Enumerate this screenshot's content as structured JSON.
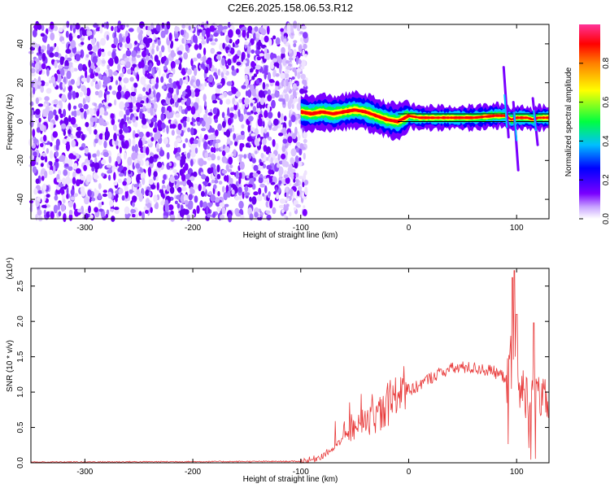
{
  "title": "C2E6.2025.158.06.53.R12",
  "chart_data": [
    {
      "type": "heatmap",
      "xlabel": "Height of straight line (km)",
      "ylabel": "Frequency (Hz)",
      "xlim": [
        -350,
        130
      ],
      "ylim": [
        -50,
        50
      ],
      "xticks": [
        -300,
        -200,
        -100,
        0,
        100
      ],
      "yticks": [
        -40,
        -20,
        0,
        20,
        40
      ],
      "colorbar": {
        "label": "Normalized spectral amplitude",
        "range": [
          0,
          1
        ],
        "ticks": [
          "0.0",
          "0.2",
          "0.4",
          "0.6",
          "0.8"
        ],
        "tick_values": [
          0,
          0.2,
          0.4,
          0.6,
          0.8
        ],
        "colors": [
          "#ffffff",
          "#6a00ff",
          "#0000ff",
          "#00bfff",
          "#00ff40",
          "#ffff00",
          "#ff0000",
          "#ff3399"
        ]
      },
      "noise_region": {
        "x_range": [
          -350,
          -95
        ],
        "freq_range": [
          -50,
          50
        ]
      },
      "signal_trace": {
        "x": [
          -100,
          -90,
          -80,
          -70,
          -60,
          -50,
          -40,
          -30,
          -20,
          -10,
          0,
          10,
          20,
          40,
          60,
          80,
          90,
          95,
          100,
          110,
          115,
          120,
          130
        ],
        "freq": [
          5,
          4,
          5,
          4,
          5,
          6,
          5,
          3,
          1,
          0,
          3,
          2,
          2,
          2,
          2,
          3,
          3,
          1,
          2,
          2,
          1,
          2,
          2
        ]
      }
    },
    {
      "type": "line",
      "xlabel": "Height of straight line (km)",
      "ylabel": "SNR (10 * v/v)",
      "yscale_label": "(x10⁴)",
      "xlim": [
        -350,
        130
      ],
      "ylim": [
        0,
        2.75
      ],
      "xticks": [
        -300,
        -200,
        -100,
        0,
        100
      ],
      "yticks": [
        "0.0",
        "0.5",
        "1.0",
        "1.5",
        "2.0",
        "2.5"
      ],
      "ytick_values": [
        0,
        0.5,
        1.0,
        1.5,
        2.0,
        2.5
      ],
      "series": [
        {
          "color": "#e83a3a",
          "x": [
            -350,
            -100,
            -90,
            -80,
            -70,
            -60,
            -50,
            -40,
            -30,
            -20,
            -10,
            0,
            10,
            20,
            30,
            40,
            50,
            60,
            70,
            80,
            90,
            95,
            100,
            105,
            110,
            115,
            120,
            130
          ],
          "y": [
            0.01,
            0.02,
            0.04,
            0.1,
            0.2,
            0.35,
            0.48,
            0.55,
            0.65,
            0.78,
            0.88,
            1.0,
            1.1,
            1.2,
            1.28,
            1.33,
            1.35,
            1.34,
            1.32,
            1.28,
            1.2,
            1.4,
            1.05,
            1.0,
            0.95,
            0.9,
            0.92,
            0.85
          ],
          "spikes": [
            {
              "x": 96,
              "y": 2.62
            },
            {
              "x": 98,
              "y": 2.72
            },
            {
              "x": 100,
              "y": 2.1
            },
            {
              "x": 116,
              "y": 1.98
            }
          ]
        }
      ]
    }
  ]
}
